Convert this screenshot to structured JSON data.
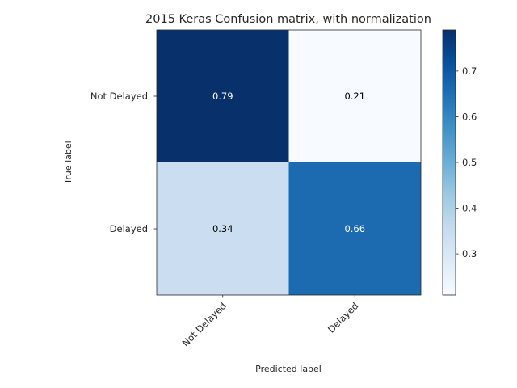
{
  "chart_data": {
    "type": "heatmap",
    "title": "2015 Keras Confusion matrix, with normalization",
    "xlabel": "Predicted label",
    "ylabel": "True label",
    "x_categories": [
      "Not Delayed",
      "Delayed"
    ],
    "y_categories": [
      "Not Delayed",
      "Delayed"
    ],
    "values": [
      [
        0.79,
        0.21
      ],
      [
        0.34,
        0.66
      ]
    ],
    "value_labels": [
      [
        "0.79",
        "0.21"
      ],
      [
        "0.34",
        "0.66"
      ]
    ],
    "colormap": "Blues",
    "color_range": [
      0.21,
      0.79
    ],
    "colorbar_ticks": [
      0.3,
      0.4,
      0.5,
      0.6,
      0.7
    ],
    "colorbar_tick_labels": [
      "0.3",
      "0.4",
      "0.5",
      "0.6",
      "0.7"
    ],
    "grid": false
  }
}
